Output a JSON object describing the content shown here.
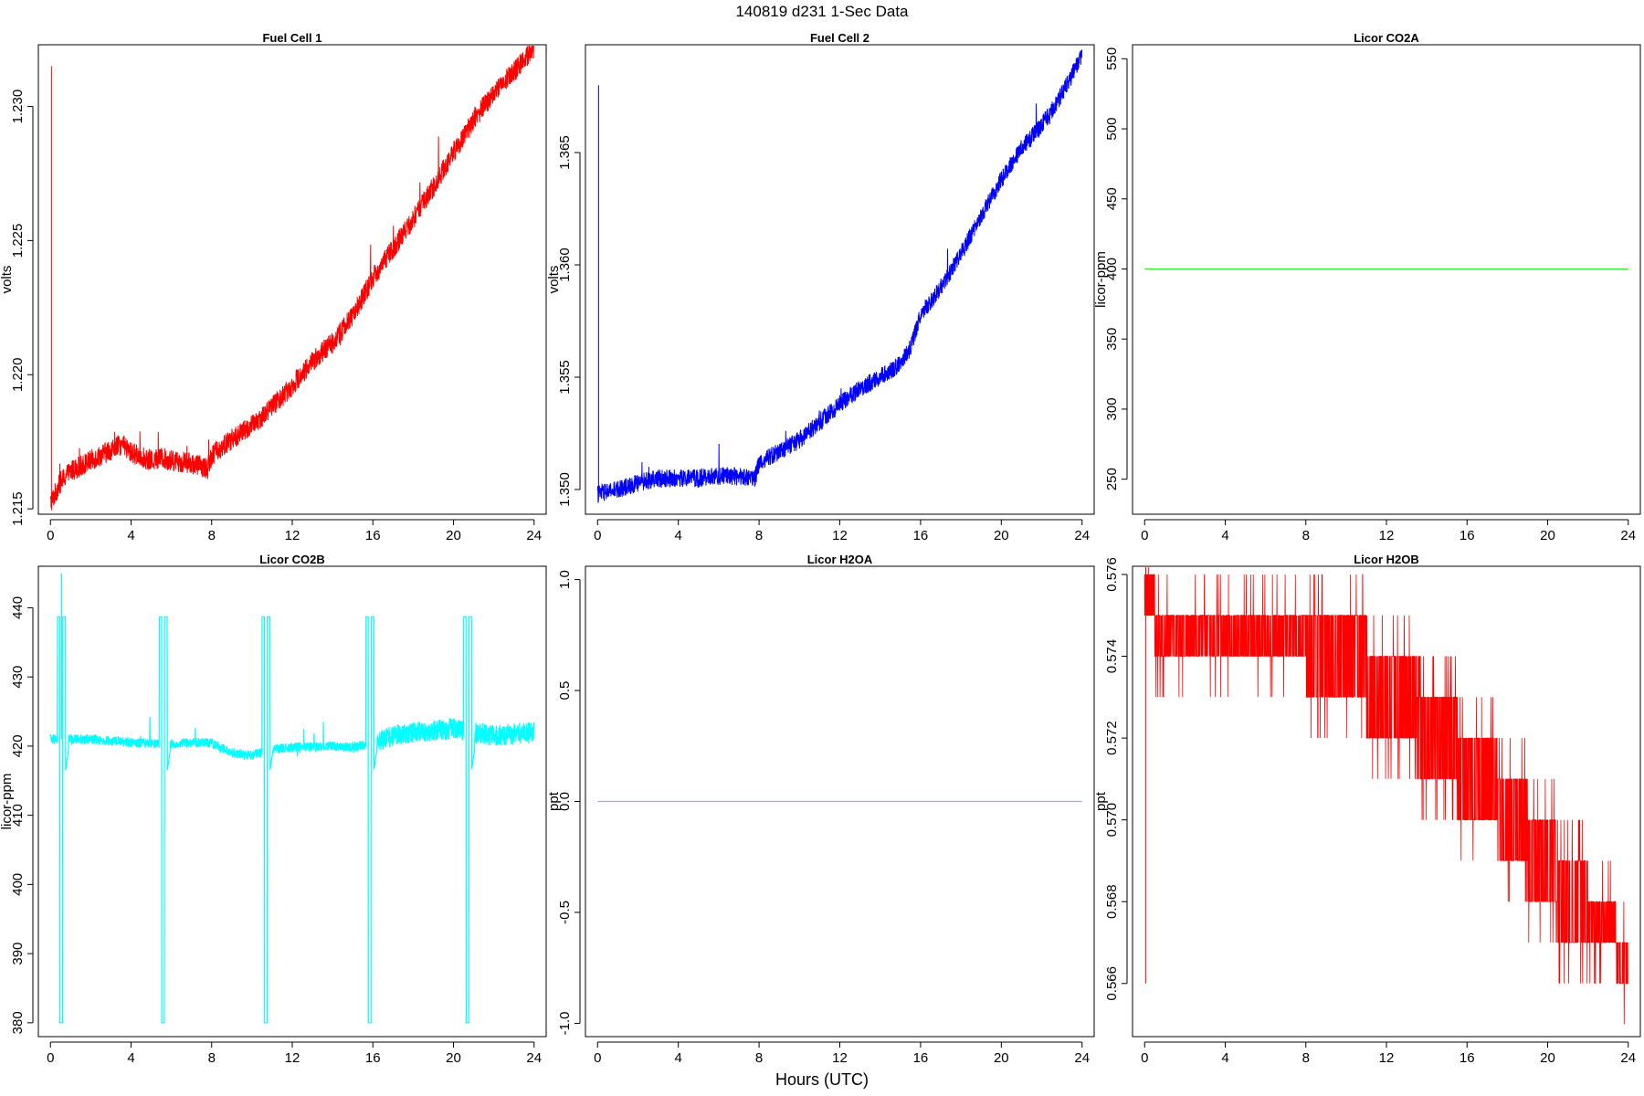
{
  "title": "140819   d231   1-Sec Data",
  "xlabel": "Hours (UTC)",
  "chart_data": [
    {
      "type": "line",
      "title": "Fuel Cell 1",
      "ylabel": "volts",
      "color": "#ff0000",
      "xlim": [
        -0.6,
        24.6
      ],
      "ylim": [
        1.2148,
        1.2323
      ],
      "xticks": [
        0,
        4,
        8,
        12,
        16,
        20,
        24
      ],
      "yticks": [
        1.215,
        1.22,
        1.225,
        1.23
      ],
      "ytick_labels": [
        "1.215",
        "1.220",
        "1.225",
        "1.230"
      ],
      "series": [
        {
          "x": [
            0,
            0.5,
            1,
            2,
            3,
            3.5,
            4,
            5,
            5.5,
            6,
            7,
            7.8,
            8,
            9,
            10,
            11,
            12,
            13,
            14,
            15,
            16,
            17,
            18,
            19,
            20,
            21,
            21.5,
            22,
            23,
            24
          ],
          "values": [
            1.2152,
            1.216,
            1.2164,
            1.2168,
            1.2172,
            1.2174,
            1.2171,
            1.2168,
            1.2169,
            1.2168,
            1.2167,
            1.2165,
            1.217,
            1.2176,
            1.2181,
            1.2188,
            1.2196,
            1.2205,
            1.2212,
            1.2222,
            1.2236,
            1.2247,
            1.2258,
            1.227,
            1.2283,
            1.2295,
            1.23,
            1.2305,
            1.2313,
            1.2322
          ],
          "noise": 0.0004,
          "spike": {
            "x": 0.05,
            "y": 1.2315
          }
        }
      ]
    },
    {
      "type": "line",
      "title": "Fuel Cell 2",
      "ylabel": "volts",
      "color": "#0000ff",
      "xlim": [
        -0.6,
        24.6
      ],
      "ylim": [
        1.3489,
        1.3698
      ],
      "xticks": [
        0,
        4,
        8,
        12,
        16,
        20,
        24
      ],
      "yticks": [
        1.35,
        1.355,
        1.36,
        1.365
      ],
      "ytick_labels": [
        "1.350",
        "1.355",
        "1.360",
        "1.365"
      ],
      "series": [
        {
          "x": [
            0,
            1,
            2,
            3,
            4,
            5,
            6,
            7,
            7.8,
            8,
            9,
            10,
            11,
            12,
            13,
            14,
            15,
            15.5,
            16,
            17,
            18,
            19,
            20,
            21,
            22,
            23,
            24
          ],
          "values": [
            1.3498,
            1.35,
            1.3503,
            1.3505,
            1.3505,
            1.3505,
            1.3506,
            1.3506,
            1.3505,
            1.3512,
            1.3517,
            1.3522,
            1.353,
            1.3538,
            1.3545,
            1.355,
            1.3556,
            1.3563,
            1.3578,
            1.359,
            1.3605,
            1.3622,
            1.3638,
            1.3652,
            1.3662,
            1.3676,
            1.3693
          ],
          "noise": 0.0004,
          "spike": {
            "x": 0.05,
            "y": 1.368
          }
        }
      ]
    },
    {
      "type": "line",
      "title": "Licor CO2A",
      "ylabel": "licor-ppm",
      "color": "#33e633",
      "xlim": [
        -0.6,
        24.6
      ],
      "ylim": [
        225,
        560
      ],
      "xticks": [
        0,
        4,
        8,
        12,
        16,
        20,
        24
      ],
      "yticks": [
        250,
        300,
        350,
        400,
        450,
        500,
        550
      ],
      "ytick_labels": [
        "250",
        "300",
        "350",
        "400",
        "450",
        "500",
        "550"
      ],
      "series": [
        {
          "x": [
            0,
            24
          ],
          "values": [
            400,
            400
          ],
          "noise": 0
        }
      ]
    },
    {
      "type": "line",
      "title": "Licor CO2B",
      "ylabel": "licor-ppm",
      "color": "#00ffff",
      "xlim": [
        -0.6,
        24.6
      ],
      "ylim": [
        378,
        446
      ],
      "xticks": [
        0,
        4,
        8,
        12,
        16,
        20,
        24
      ],
      "yticks": [
        380,
        390,
        400,
        410,
        420,
        430,
        440
      ],
      "ytick_labels": [
        "380",
        "390",
        "400",
        "410",
        "420",
        "430",
        "440"
      ],
      "series": [
        {
          "x": [
            0,
            1,
            2,
            4,
            6,
            7.5,
            8,
            9,
            10,
            11,
            12,
            14,
            15,
            16,
            17,
            18,
            20,
            22,
            24
          ],
          "values": [
            421,
            421,
            421,
            420.5,
            420.3,
            420.6,
            420.4,
            419,
            418.7,
            419.6,
            419.8,
            420,
            419.8,
            420.4,
            421.5,
            422,
            422.5,
            421.5,
            422
          ],
          "noise": 0.7,
          "calibrations": [
            0.35,
            5.4,
            10.5,
            15.65,
            20.5
          ],
          "cal_high": 438.7,
          "cal_low": 380
        }
      ]
    },
    {
      "type": "line",
      "title": "Licor H2OA",
      "ylabel": "ppt",
      "color": "#dd88ee",
      "xlim": [
        -0.6,
        24.6
      ],
      "ylim": [
        -1.06,
        1.06
      ],
      "xticks": [
        0,
        4,
        8,
        12,
        16,
        20,
        24
      ],
      "yticks": [
        -1.0,
        -0.5,
        0.0,
        0.5,
        1.0
      ],
      "ytick_labels": [
        "-1.0",
        "-0.5",
        "0.0",
        "0.5",
        "1.0"
      ],
      "series": [
        {
          "x": [
            0,
            24
          ],
          "values": [
            0,
            0
          ],
          "noise": 0
        }
      ]
    },
    {
      "type": "line",
      "title": "Licor H2OB",
      "ylabel": "ppt",
      "color": "#ff0000",
      "xlim": [
        -0.6,
        24.6
      ],
      "ylim": [
        0.5647,
        0.5762
      ],
      "xticks": [
        0,
        4,
        8,
        12,
        16,
        20,
        24
      ],
      "yticks": [
        0.566,
        0.568,
        0.57,
        0.572,
        0.574,
        0.576
      ],
      "ytick_labels": [
        "0.566",
        "0.568",
        "0.570",
        "0.572",
        "0.574",
        "0.576"
      ],
      "series": [
        {
          "steps": [
            {
              "x0": 0.0,
              "x1": 0.5,
              "lo": 0.575,
              "hi": 0.576
            },
            {
              "x0": 0.5,
              "x1": 8.0,
              "lo": 0.574,
              "hi": 0.575
            },
            {
              "x0": 8.0,
              "x1": 11.0,
              "lo": 0.573,
              "hi": 0.575
            },
            {
              "x0": 11.0,
              "x1": 13.5,
              "lo": 0.572,
              "hi": 0.574
            },
            {
              "x0": 13.5,
              "x1": 15.5,
              "lo": 0.571,
              "hi": 0.573
            },
            {
              "x0": 15.5,
              "x1": 17.5,
              "lo": 0.57,
              "hi": 0.572
            },
            {
              "x0": 17.5,
              "x1": 19.0,
              "lo": 0.569,
              "hi": 0.571
            },
            {
              "x0": 19.0,
              "x1": 20.5,
              "lo": 0.568,
              "hi": 0.57
            },
            {
              "x0": 20.5,
              "x1": 22.0,
              "lo": 0.567,
              "hi": 0.569
            },
            {
              "x0": 22.0,
              "x1": 23.4,
              "lo": 0.567,
              "hi": 0.568
            },
            {
              "x0": 23.4,
              "x1": 24.0,
              "lo": 0.566,
              "hi": 0.567
            }
          ],
          "spike": {
            "x": 0.05,
            "y": 0.566
          }
        }
      ]
    }
  ]
}
